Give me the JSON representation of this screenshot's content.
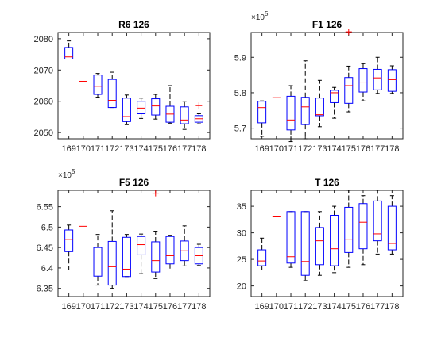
{
  "chart_data": [
    {
      "type": "box",
      "title": "R6 126",
      "categories": [
        "169",
        "170",
        "171",
        "172",
        "173",
        "174",
        "175",
        "176",
        "177",
        "178"
      ],
      "ylim": [
        2048,
        2082
      ],
      "yticks": [
        2050,
        2060,
        2070,
        2080
      ],
      "ytick_labels": [
        "2050",
        "2060",
        "2070",
        "2080"
      ],
      "exponent_label": "",
      "boxes": [
        {
          "cat": "169",
          "q1": 2073.5,
          "med": 2074.2,
          "q3": 2077.2,
          "wlo": 2073.5,
          "whi": 2079.3
        },
        {
          "cat": "170",
          "q1": null,
          "med": 2066.4,
          "q3": null,
          "wlo": null,
          "whi": null
        },
        {
          "cat": "171",
          "q1": 2062.2,
          "med": 2064.8,
          "q3": 2068.4,
          "wlo": 2061.3,
          "whi": 2068.9
        },
        {
          "cat": "172",
          "q1": 2058.0,
          "med": 2060.3,
          "q3": 2067.0,
          "wlo": 2058.0,
          "whi": 2069.3
        },
        {
          "cat": "173",
          "q1": 2053.5,
          "med": 2055.1,
          "q3": 2061.0,
          "wlo": 2052.5,
          "whi": 2062.0
        },
        {
          "cat": "174",
          "q1": 2056.0,
          "med": 2057.8,
          "q3": 2060.0,
          "wlo": 2054.5,
          "whi": 2061.0
        },
        {
          "cat": "175",
          "q1": 2055.6,
          "med": 2058.5,
          "q3": 2060.8,
          "wlo": 2054.3,
          "whi": 2062.2
        },
        {
          "cat": "176",
          "q1": 2053.3,
          "med": 2055.9,
          "q3": 2058.4,
          "wlo": 2053.0,
          "whi": 2065.0
        },
        {
          "cat": "177",
          "q1": 2052.8,
          "med": 2054.0,
          "q3": 2058.2,
          "wlo": 2051.0,
          "whi": 2060.0
        },
        {
          "cat": "178",
          "q1": 2053.3,
          "med": 2054.4,
          "q3": 2055.4,
          "wlo": 2052.8,
          "whi": 2056.0
        }
      ],
      "outliers": [
        {
          "cat": "178",
          "y": 2058.6
        }
      ]
    },
    {
      "type": "box",
      "title": "F1 126",
      "categories": [
        "169",
        "170",
        "171",
        "172",
        "173",
        "174",
        "175",
        "176",
        "177",
        "178"
      ],
      "ylim": [
        567000,
        597000
      ],
      "yticks": [
        570000,
        580000,
        590000
      ],
      "ytick_labels": [
        "5.7",
        "5.8",
        "5.9"
      ],
      "exponent_label": "×10",
      "exponent_power": "5",
      "boxes": [
        {
          "cat": "169",
          "q1": 571500,
          "med": 575800,
          "q3": 577600,
          "wlo": 567700,
          "whi": 577700
        },
        {
          "cat": "170",
          "q1": null,
          "med": 578600,
          "q3": null,
          "wlo": null,
          "whi": null
        },
        {
          "cat": "171",
          "q1": 569500,
          "med": 572300,
          "q3": 579000,
          "wlo": 566200,
          "whi": 582000
        },
        {
          "cat": "172",
          "q1": 571000,
          "med": 576000,
          "q3": 578700,
          "wlo": 567000,
          "whi": 589000
        },
        {
          "cat": "173",
          "q1": 573500,
          "med": 573800,
          "q3": 578500,
          "wlo": 570400,
          "whi": 583500
        },
        {
          "cat": "174",
          "q1": 577200,
          "med": 580000,
          "q3": 580700,
          "wlo": 572800,
          "whi": 581500
        },
        {
          "cat": "175",
          "q1": 577000,
          "med": 582000,
          "q3": 584300,
          "wlo": 574600,
          "whi": 587500
        },
        {
          "cat": "176",
          "q1": 580200,
          "med": 583000,
          "q3": 586800,
          "wlo": 577700,
          "whi": 588200
        },
        {
          "cat": "177",
          "q1": 580800,
          "med": 584200,
          "q3": 586600,
          "wlo": 579800,
          "whi": 590000
        },
        {
          "cat": "178",
          "q1": 580400,
          "med": 583700,
          "q3": 586500,
          "wlo": 579800,
          "whi": 587600
        }
      ],
      "outliers": [
        {
          "cat": "175",
          "y": 597200
        }
      ]
    },
    {
      "type": "box",
      "title": "F5 126",
      "categories": [
        "169",
        "170",
        "171",
        "172",
        "173",
        "174",
        "175",
        "176",
        "177",
        "178"
      ],
      "ylim": [
        633000,
        659000
      ],
      "yticks": [
        635000,
        640000,
        645000,
        650000,
        655000
      ],
      "ytick_labels": [
        "6.35",
        "6.4",
        "6.45",
        "6.5",
        "6.55"
      ],
      "exponent_label": "×10",
      "exponent_power": "5",
      "boxes": [
        {
          "cat": "169",
          "q1": 644000,
          "med": 647000,
          "q3": 649300,
          "wlo": 639500,
          "whi": 650500
        },
        {
          "cat": "170",
          "q1": null,
          "med": 650200,
          "q3": null,
          "wlo": null,
          "whi": null
        },
        {
          "cat": "171",
          "q1": 638000,
          "med": 639500,
          "q3": 645000,
          "wlo": 635800,
          "whi": 648200
        },
        {
          "cat": "172",
          "q1": 635800,
          "med": 640300,
          "q3": 646500,
          "wlo": 635000,
          "whi": 654000
        },
        {
          "cat": "173",
          "q1": 637900,
          "med": 639700,
          "q3": 647500,
          "wlo": 637900,
          "whi": 648200
        },
        {
          "cat": "174",
          "q1": 643200,
          "med": 645700,
          "q3": 647700,
          "wlo": 638600,
          "whi": 648300
        },
        {
          "cat": "175",
          "q1": 639000,
          "med": 641800,
          "q3": 646400,
          "wlo": 637400,
          "whi": 649000
        },
        {
          "cat": "176",
          "q1": 641000,
          "med": 643000,
          "q3": 647700,
          "wlo": 639500,
          "whi": 648000
        },
        {
          "cat": "177",
          "q1": 641800,
          "med": 644200,
          "q3": 646600,
          "wlo": 640500,
          "whi": 650300
        },
        {
          "cat": "178",
          "q1": 641000,
          "med": 643000,
          "q3": 645000,
          "wlo": 640600,
          "whi": 645800
        }
      ],
      "outliers": [
        {
          "cat": "175",
          "y": 658300
        }
      ]
    },
    {
      "type": "box",
      "title": "T 126",
      "categories": [
        "169",
        "170",
        "171",
        "172",
        "173",
        "174",
        "175",
        "176",
        "177",
        "178"
      ],
      "ylim": [
        18,
        38
      ],
      "yticks": [
        20,
        25,
        30,
        35
      ],
      "ytick_labels": [
        "20",
        "25",
        "30",
        "35"
      ],
      "exponent_label": "",
      "boxes": [
        {
          "cat": "169",
          "q1": 23.8,
          "med": 24.7,
          "q3": 26.8,
          "wlo": 23.0,
          "whi": 29.0
        },
        {
          "cat": "170",
          "q1": null,
          "med": 33.0,
          "q3": null,
          "wlo": null,
          "whi": null
        },
        {
          "cat": "171",
          "q1": 24.3,
          "med": 25.5,
          "q3": 34.0,
          "wlo": 23.5,
          "whi": 34.0
        },
        {
          "cat": "172",
          "q1": 22.0,
          "med": 24.6,
          "q3": 34.0,
          "wlo": 21.0,
          "whi": 34.0
        },
        {
          "cat": "173",
          "q1": 24.0,
          "med": 28.5,
          "q3": 31.0,
          "wlo": 22.0,
          "whi": 34.0
        },
        {
          "cat": "174",
          "q1": 23.8,
          "med": 27.0,
          "q3": 33.3,
          "wlo": 22.5,
          "whi": 35.0
        },
        {
          "cat": "175",
          "q1": 26.3,
          "med": 28.8,
          "q3": 34.8,
          "wlo": 23.5,
          "whi": 38.0
        },
        {
          "cat": "176",
          "q1": 27.0,
          "med": 32.0,
          "q3": 35.5,
          "wlo": 24.0,
          "whi": 37.0
        },
        {
          "cat": "177",
          "q1": 28.5,
          "med": 29.8,
          "q3": 36.0,
          "wlo": 26.0,
          "whi": 38.0
        },
        {
          "cat": "178",
          "q1": 26.8,
          "med": 28.0,
          "q3": 35.0,
          "wlo": 26.0,
          "whi": 37.0
        }
      ],
      "outliers": []
    }
  ],
  "style": {
    "box_color": "#0000ff",
    "median_color": "#ff0000",
    "whisker_color": "#000000",
    "outlier_color": "#ff0000",
    "axis_color": "#262626"
  }
}
